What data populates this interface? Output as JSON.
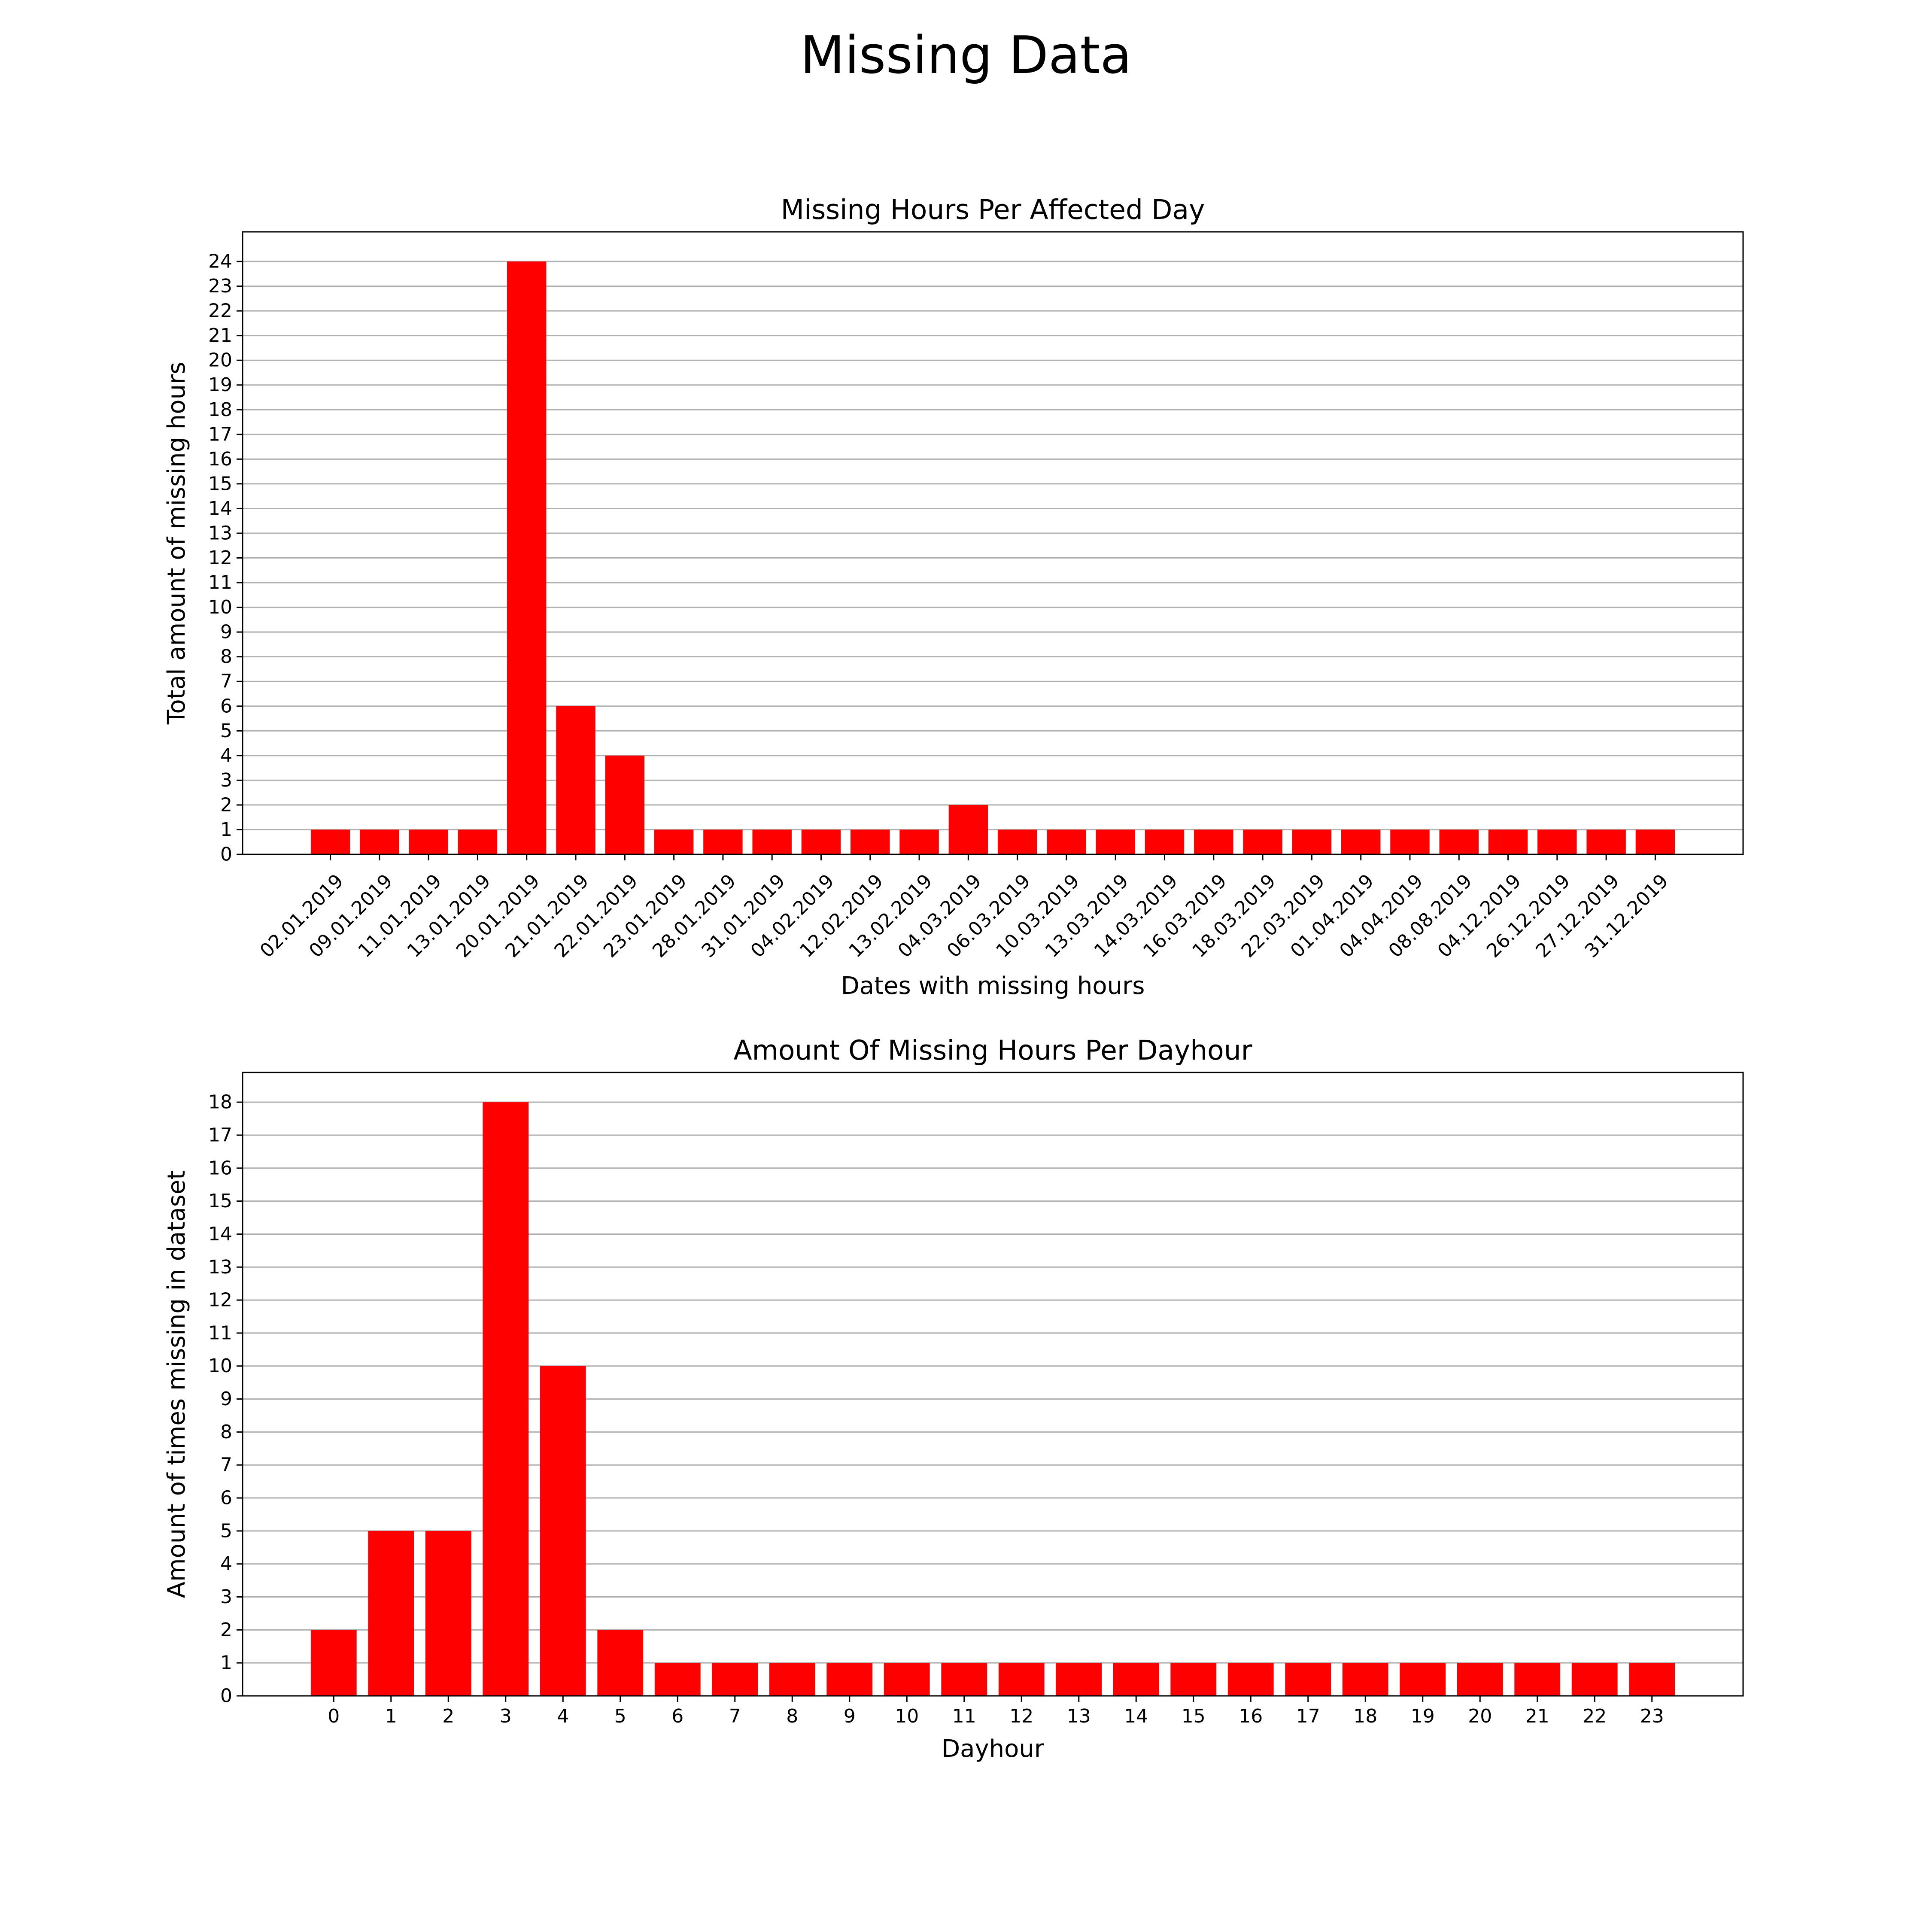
{
  "figure": {
    "title": "Missing Data",
    "bar_color": "#ff0000",
    "grid_color": "#b0b0b0"
  },
  "chart_data": [
    {
      "type": "bar",
      "title": "Missing Hours Per Affected Day",
      "xlabel": "Dates with missing hours",
      "ylabel": "Total amount of missing hours",
      "categories": [
        "02.01.2019",
        "09.01.2019",
        "11.01.2019",
        "13.01.2019",
        "20.01.2019",
        "21.01.2019",
        "22.01.2019",
        "23.01.2019",
        "28.01.2019",
        "31.01.2019",
        "04.02.2019",
        "12.02.2019",
        "13.02.2019",
        "04.03.2019",
        "06.03.2019",
        "10.03.2019",
        "13.03.2019",
        "14.03.2019",
        "16.03.2019",
        "18.03.2019",
        "22.03.2019",
        "01.04.2019",
        "04.04.2019",
        "08.08.2019",
        "04.12.2019",
        "26.12.2019",
        "27.12.2019",
        "31.12.2019"
      ],
      "values": [
        1,
        1,
        1,
        1,
        24,
        6,
        4,
        1,
        1,
        1,
        1,
        1,
        1,
        2,
        1,
        1,
        1,
        1,
        1,
        1,
        1,
        1,
        1,
        1,
        1,
        1,
        1,
        1
      ],
      "ylim": [
        0,
        25.2
      ],
      "yticks": [
        0,
        1,
        2,
        3,
        4,
        5,
        6,
        7,
        8,
        9,
        10,
        11,
        12,
        13,
        14,
        15,
        16,
        17,
        18,
        19,
        20,
        21,
        22,
        23,
        24
      ],
      "grid": "y",
      "xtick_rotation": 45
    },
    {
      "type": "bar",
      "title": "Amount Of Missing Hours Per Dayhour",
      "xlabel": "Dayhour",
      "ylabel": "Amount of times missing in dataset",
      "categories": [
        "0",
        "1",
        "2",
        "3",
        "4",
        "5",
        "6",
        "7",
        "8",
        "9",
        "10",
        "11",
        "12",
        "13",
        "14",
        "15",
        "16",
        "17",
        "18",
        "19",
        "20",
        "21",
        "22",
        "23"
      ],
      "values": [
        2,
        5,
        5,
        18,
        10,
        2,
        1,
        1,
        1,
        1,
        1,
        1,
        1,
        1,
        1,
        1,
        1,
        1,
        1,
        1,
        1,
        1,
        1,
        1
      ],
      "ylim": [
        0,
        18.9
      ],
      "yticks": [
        0,
        1,
        2,
        3,
        4,
        5,
        6,
        7,
        8,
        9,
        10,
        11,
        12,
        13,
        14,
        15,
        16,
        17,
        18
      ],
      "grid": "y",
      "xtick_rotation": 0
    }
  ]
}
